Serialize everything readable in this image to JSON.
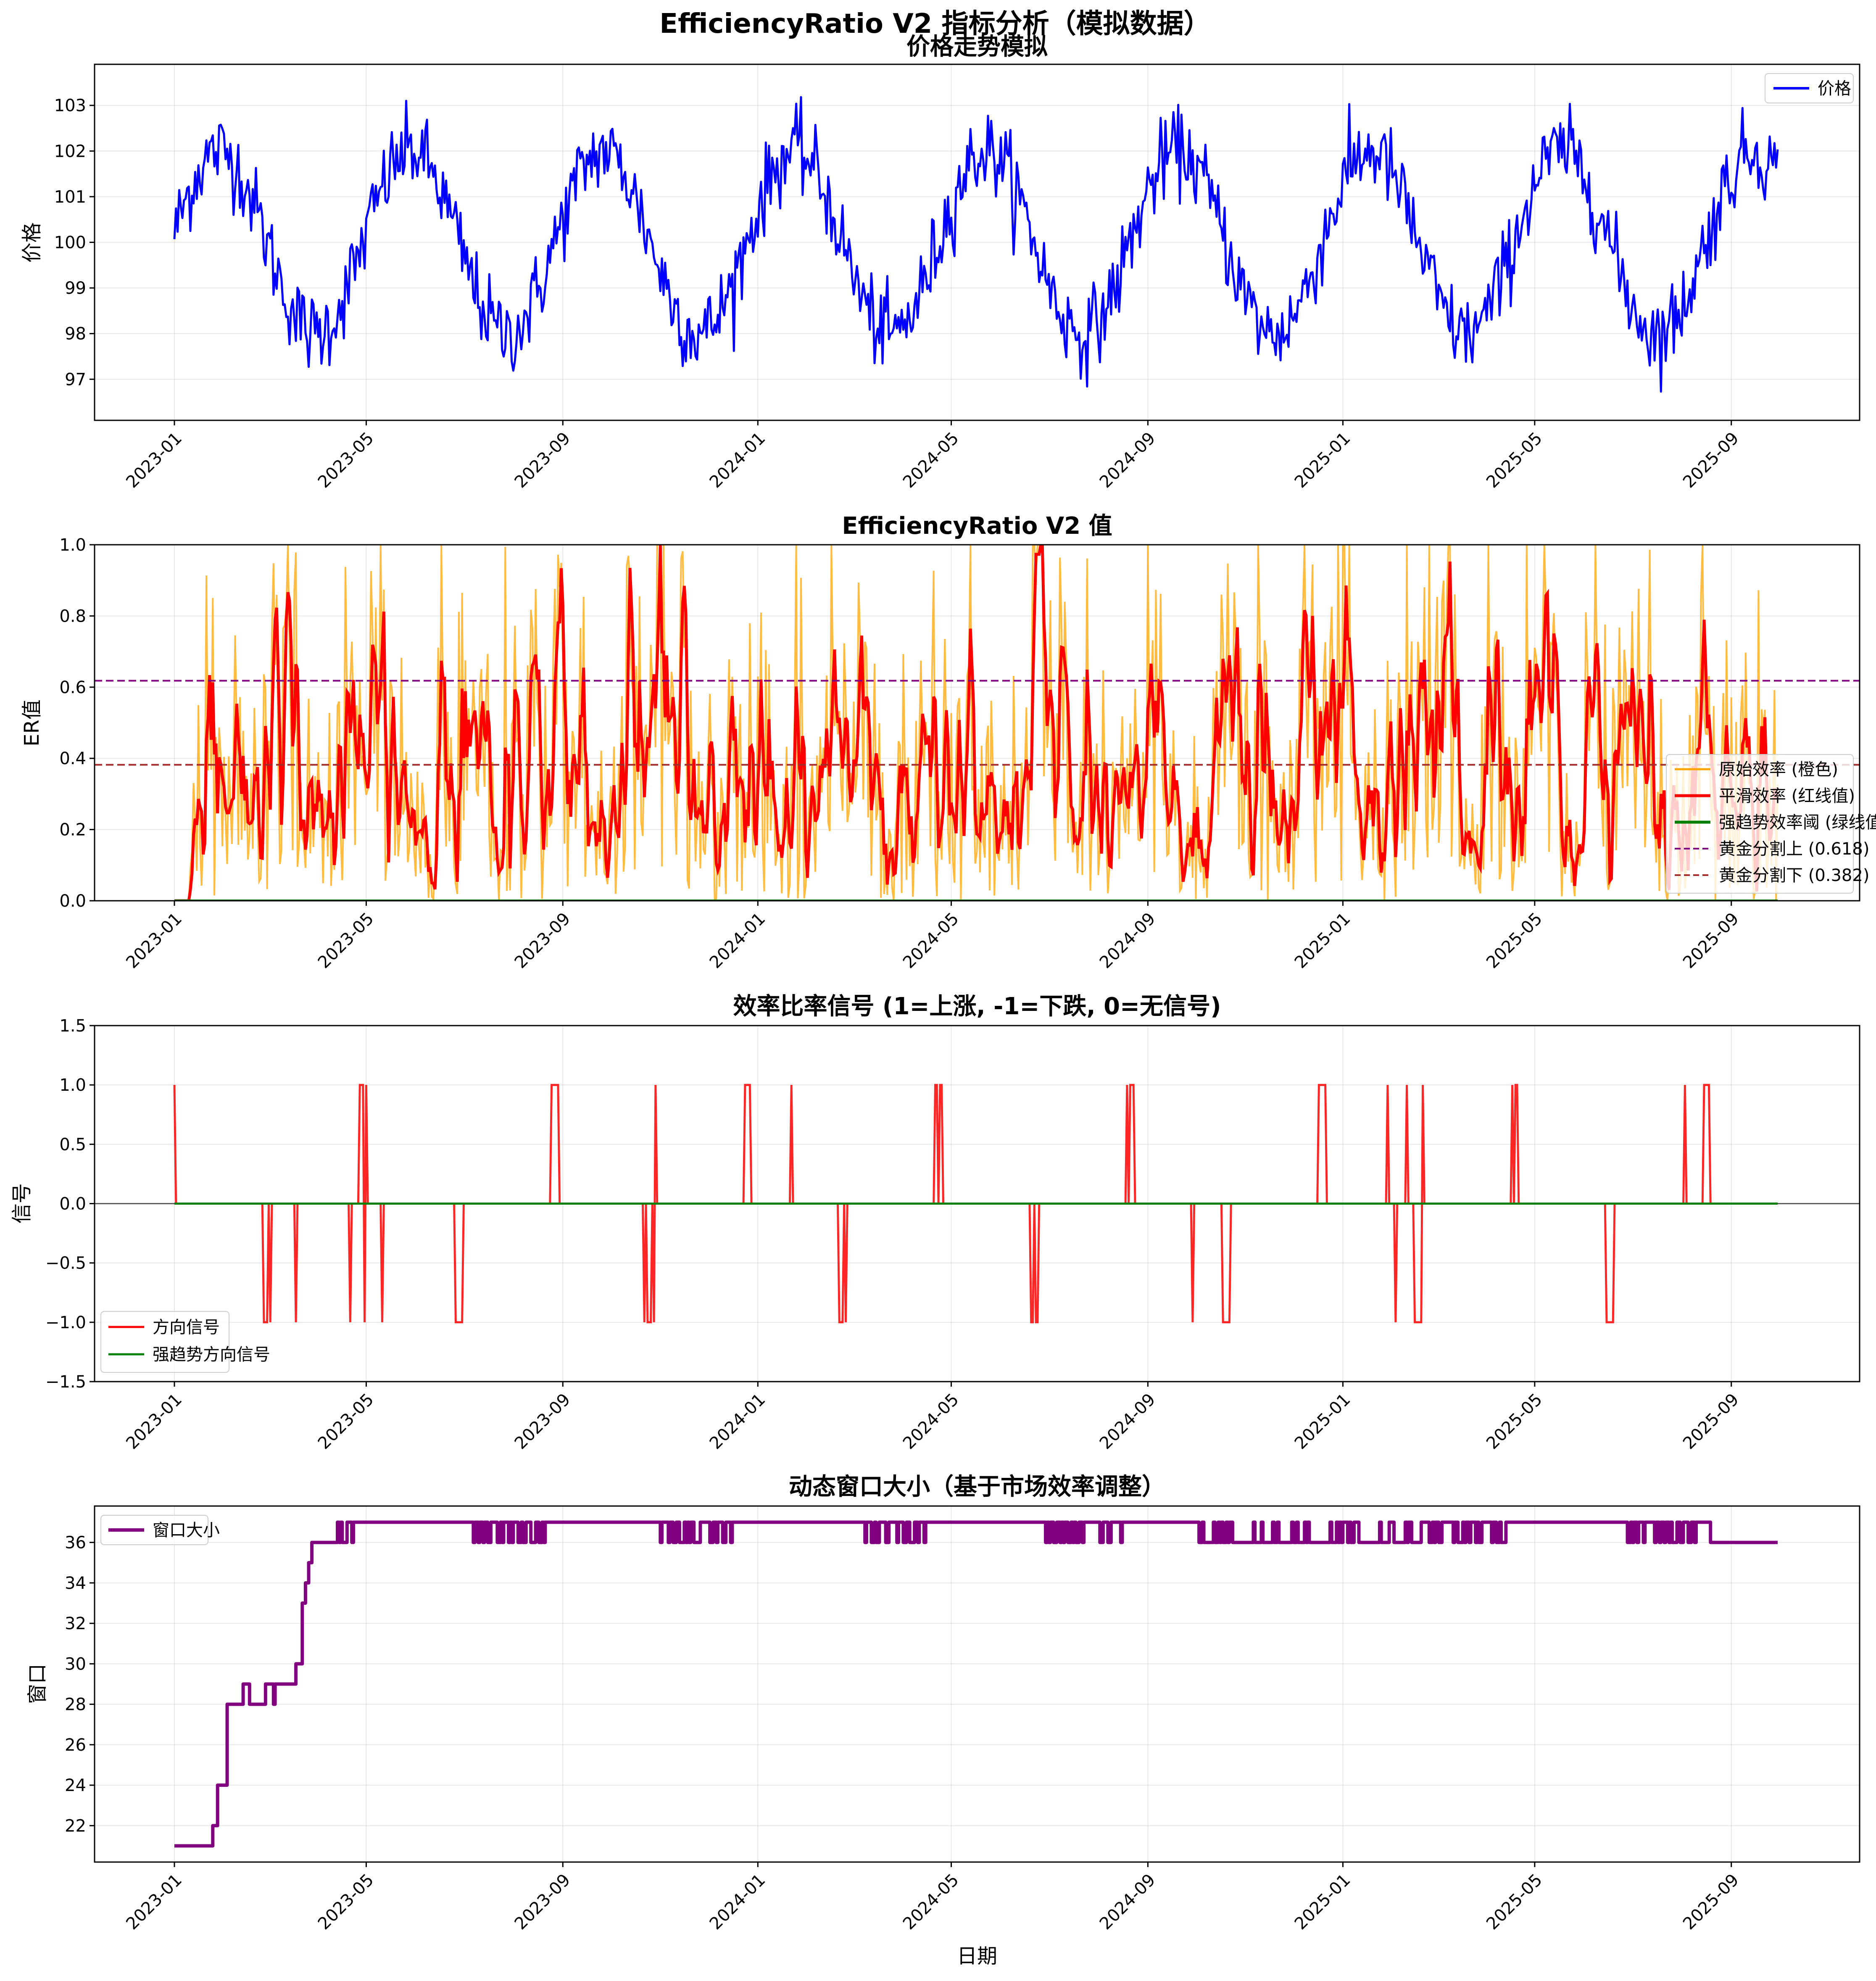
{
  "figure_title": "EfficiencyRatio V2 指标分析（模拟数据）",
  "colors": {
    "price": "#0000ff",
    "original": "#ffa500",
    "smooth": "#ff0000",
    "strong": "#008000",
    "golden_upper": "#800080",
    "golden_lower": "#a52a2a",
    "signal_dir": "#ff0000",
    "signal_strong": "#008000",
    "window": "#800080"
  },
  "chart_data": [
    {
      "type": "line",
      "title": "价格走势模拟",
      "xlabel": "",
      "ylabel": "价格",
      "x_ticks": [
        "2023-01",
        "2023-05",
        "2023-09",
        "2024-01",
        "2024-05",
        "2024-09",
        "2025-01",
        "2025-05",
        "2025-09"
      ],
      "y_ticks": [
        "97",
        "98",
        "99",
        "100",
        "101",
        "102",
        "103"
      ],
      "ylim": [
        96.1,
        103.9
      ],
      "x_range": [
        "2023-01-01",
        "2025-09-30"
      ],
      "legend_position": "upper right",
      "grid": true,
      "cycle_days": 120,
      "series": [
        {
          "name": "价格",
          "description_values": {
            "mean": 100,
            "amplitude": 2,
            "noise": 0.5
          }
        }
      ]
    },
    {
      "type": "line",
      "title": "EfficiencyRatio V2 值",
      "xlabel": "",
      "ylabel": "ER值",
      "x_ticks": [
        "2023-01",
        "2023-05",
        "2023-09",
        "2024-01",
        "2024-05",
        "2024-09",
        "2025-01",
        "2025-05",
        "2025-09"
      ],
      "y_ticks": [
        "0.0",
        "0.2",
        "0.4",
        "0.6",
        "0.8",
        "1.0"
      ],
      "ylim": [
        0,
        1
      ],
      "legend_position": "lower right",
      "grid": true,
      "series": [
        {
          "name": "原始效率 (橙色)",
          "y_range": [
            0,
            1
          ]
        },
        {
          "name": "平滑效率 (红线值)",
          "y_range": [
            0,
            1
          ]
        },
        {
          "name": "强趋势效率阈 (绿线值)",
          "values": [
            0
          ]
        },
        {
          "name": "黄金分割上 (0.618)",
          "values": [
            0.618
          ]
        },
        {
          "name": "黄金分割下 (0.382)",
          "values": [
            0.382
          ]
        }
      ]
    },
    {
      "type": "line",
      "title": "效率比率信号 (1=上涨, -1=下跌, 0=无信号)",
      "xlabel": "",
      "ylabel": "信号",
      "x_ticks": [
        "2023-01",
        "2023-05",
        "2023-09",
        "2024-01",
        "2024-05",
        "2024-09",
        "2025-01",
        "2025-05",
        "2025-09"
      ],
      "y_ticks": [
        "−1.5",
        "−1.0",
        "−0.5",
        "0.0",
        "0.5",
        "1.0",
        "1.5"
      ],
      "ylim": [
        -1.5,
        1.5
      ],
      "legend_position": "lower left",
      "grid": true,
      "series": [
        {
          "name": "方向信号",
          "values": [
            -1,
            0,
            1
          ]
        },
        {
          "name": "强趋势方向信号",
          "values": [
            0
          ]
        }
      ]
    },
    {
      "type": "line",
      "title": "动态窗口大小（基于市场效率调整）",
      "xlabel": "日期",
      "ylabel": "窗口",
      "x_ticks": [
        "2023-01",
        "2023-05",
        "2023-09",
        "2024-01",
        "2024-05",
        "2024-09",
        "2025-01",
        "2025-05",
        "2025-09"
      ],
      "y_ticks": [
        "22",
        "24",
        "26",
        "28",
        "30",
        "32",
        "34",
        "36"
      ],
      "ylim": [
        20.2,
        37.8
      ],
      "legend_position": "upper left",
      "grid": true,
      "ramp_values": [
        [
          0,
          21
        ],
        [
          22,
          21
        ],
        [
          24,
          22
        ],
        [
          26,
          22
        ],
        [
          27,
          24
        ],
        [
          30,
          24
        ],
        [
          33,
          28
        ],
        [
          41,
          28
        ],
        [
          43,
          29
        ],
        [
          46,
          29
        ],
        [
          47,
          28
        ],
        [
          55,
          28
        ],
        [
          57,
          29
        ],
        [
          61,
          29
        ],
        [
          62,
          28
        ],
        [
          63,
          29
        ],
        [
          74,
          29
        ],
        [
          76,
          30
        ],
        [
          78,
          30
        ],
        [
          80,
          33
        ],
        [
          82,
          34
        ],
        [
          84,
          35
        ],
        [
          86,
          36
        ],
        [
          100,
          36
        ],
        [
          102,
          37
        ]
      ],
      "series": [
        {
          "name": "窗口大小",
          "values_range": [
            21,
            37
          ]
        }
      ]
    }
  ]
}
